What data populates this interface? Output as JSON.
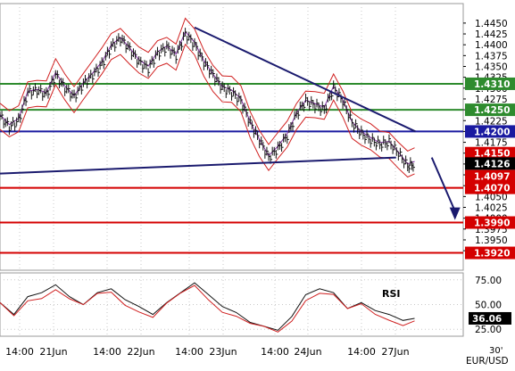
{
  "chart_data": {
    "type": "line",
    "symbol": "EUR/USD",
    "timeframe": "30'",
    "x_ticks": [
      "14:00",
      "21Jun",
      "14:00",
      "22Jun",
      "14:00",
      "23Jun",
      "14:00",
      "24Jun",
      "14:00",
      "27Jun"
    ],
    "price_axis": {
      "ylim": [
        1.388,
        1.4495
      ],
      "ticks": [
        "1.4450",
        "1.4425",
        "1.4400",
        "1.4375",
        "1.4350",
        "1.4325",
        "1.4300",
        "1.4275",
        "1.4250",
        "1.4225",
        "1.4200",
        "1.4175",
        "1.4150",
        "1.4125",
        "1.4100",
        "1.4075",
        "1.4050",
        "1.4025",
        "1.4000",
        "1.3975",
        "1.3950",
        "1.3925"
      ]
    },
    "horizontal_levels": [
      {
        "label": "1.4310",
        "value": 1.431,
        "color": "#2e8b2e"
      },
      {
        "label": "1.4250",
        "value": 1.425,
        "color": "#2e8b2e"
      },
      {
        "label": "1.4200",
        "value": 1.42,
        "color": "#1a1aa0"
      },
      {
        "label": "1.4070",
        "value": 1.407,
        "color": "#d40000"
      },
      {
        "label": "1.3990",
        "value": 1.399,
        "color": "#d40000"
      },
      {
        "label": "1.3920",
        "value": 1.392,
        "color": "#d40000"
      }
    ],
    "price_badges": [
      {
        "label": "1.4150",
        "value": 1.415,
        "color": "#d40000"
      },
      {
        "label": "1.4126",
        "value": 1.4126,
        "color": "#000000"
      },
      {
        "label": "1.4097",
        "value": 1.4097,
        "color": "#d40000"
      }
    ],
    "trendlines": [
      {
        "name": "descending-resistance",
        "x": [
          0.42,
          0.897
        ],
        "y": [
          1.444,
          1.42
        ]
      },
      {
        "name": "ascending-support",
        "x": [
          0.0,
          0.855
        ],
        "y": [
          1.4103,
          1.414
        ]
      }
    ],
    "projection": {
      "from": [
        0.855,
        1.414
      ],
      "to": [
        0.88,
        1.4
      ]
    },
    "price_series": [
      [
        0.0,
        1.4235
      ],
      [
        0.02,
        1.421
      ],
      [
        0.04,
        1.4225
      ],
      [
        0.06,
        1.429
      ],
      [
        0.08,
        1.4295
      ],
      [
        0.1,
        1.4285
      ],
      [
        0.12,
        1.433
      ],
      [
        0.14,
        1.43
      ],
      [
        0.16,
        1.428
      ],
      [
        0.18,
        1.431
      ],
      [
        0.2,
        1.433
      ],
      [
        0.22,
        1.4355
      ],
      [
        0.24,
        1.4395
      ],
      [
        0.26,
        1.4415
      ],
      [
        0.28,
        1.439
      ],
      [
        0.3,
        1.436
      ],
      [
        0.32,
        1.4345
      ],
      [
        0.34,
        1.438
      ],
      [
        0.36,
        1.4395
      ],
      [
        0.38,
        1.4375
      ],
      [
        0.4,
        1.4425
      ],
      [
        0.42,
        1.44
      ],
      [
        0.44,
        1.436
      ],
      [
        0.46,
        1.433
      ],
      [
        0.48,
        1.43
      ],
      [
        0.5,
        1.429
      ],
      [
        0.52,
        1.427
      ],
      [
        0.54,
        1.422
      ],
      [
        0.56,
        1.418
      ],
      [
        0.58,
        1.414
      ],
      [
        0.6,
        1.416
      ],
      [
        0.62,
        1.419
      ],
      [
        0.64,
        1.424
      ],
      [
        0.66,
        1.427
      ],
      [
        0.68,
        1.426
      ],
      [
        0.7,
        1.425
      ],
      [
        0.72,
        1.43
      ],
      [
        0.74,
        1.427
      ],
      [
        0.76,
        1.422
      ],
      [
        0.78,
        1.4195
      ],
      [
        0.8,
        1.418
      ],
      [
        0.82,
        1.417
      ],
      [
        0.84,
        1.4175
      ],
      [
        0.86,
        1.415
      ],
      [
        0.88,
        1.412
      ],
      [
        0.895,
        1.4125
      ]
    ],
    "rsi": {
      "label": "RSI",
      "ylim": [
        18,
        82
      ],
      "ticks": [
        "75.00",
        "50.00",
        "25.00"
      ],
      "current": "36.06",
      "series": [
        [
          0.0,
          52
        ],
        [
          0.03,
          40
        ],
        [
          0.06,
          58
        ],
        [
          0.09,
          62
        ],
        [
          0.12,
          70
        ],
        [
          0.15,
          58
        ],
        [
          0.18,
          50
        ],
        [
          0.21,
          62
        ],
        [
          0.24,
          66
        ],
        [
          0.27,
          55
        ],
        [
          0.3,
          48
        ],
        [
          0.33,
          40
        ],
        [
          0.36,
          52
        ],
        [
          0.39,
          62
        ],
        [
          0.42,
          72
        ],
        [
          0.45,
          60
        ],
        [
          0.48,
          48
        ],
        [
          0.51,
          42
        ],
        [
          0.54,
          32
        ],
        [
          0.57,
          28
        ],
        [
          0.6,
          24
        ],
        [
          0.63,
          38
        ],
        [
          0.66,
          60
        ],
        [
          0.69,
          66
        ],
        [
          0.72,
          62
        ],
        [
          0.75,
          46
        ],
        [
          0.78,
          52
        ],
        [
          0.81,
          44
        ],
        [
          0.84,
          40
        ],
        [
          0.87,
          34
        ],
        [
          0.895,
          36
        ]
      ]
    }
  }
}
